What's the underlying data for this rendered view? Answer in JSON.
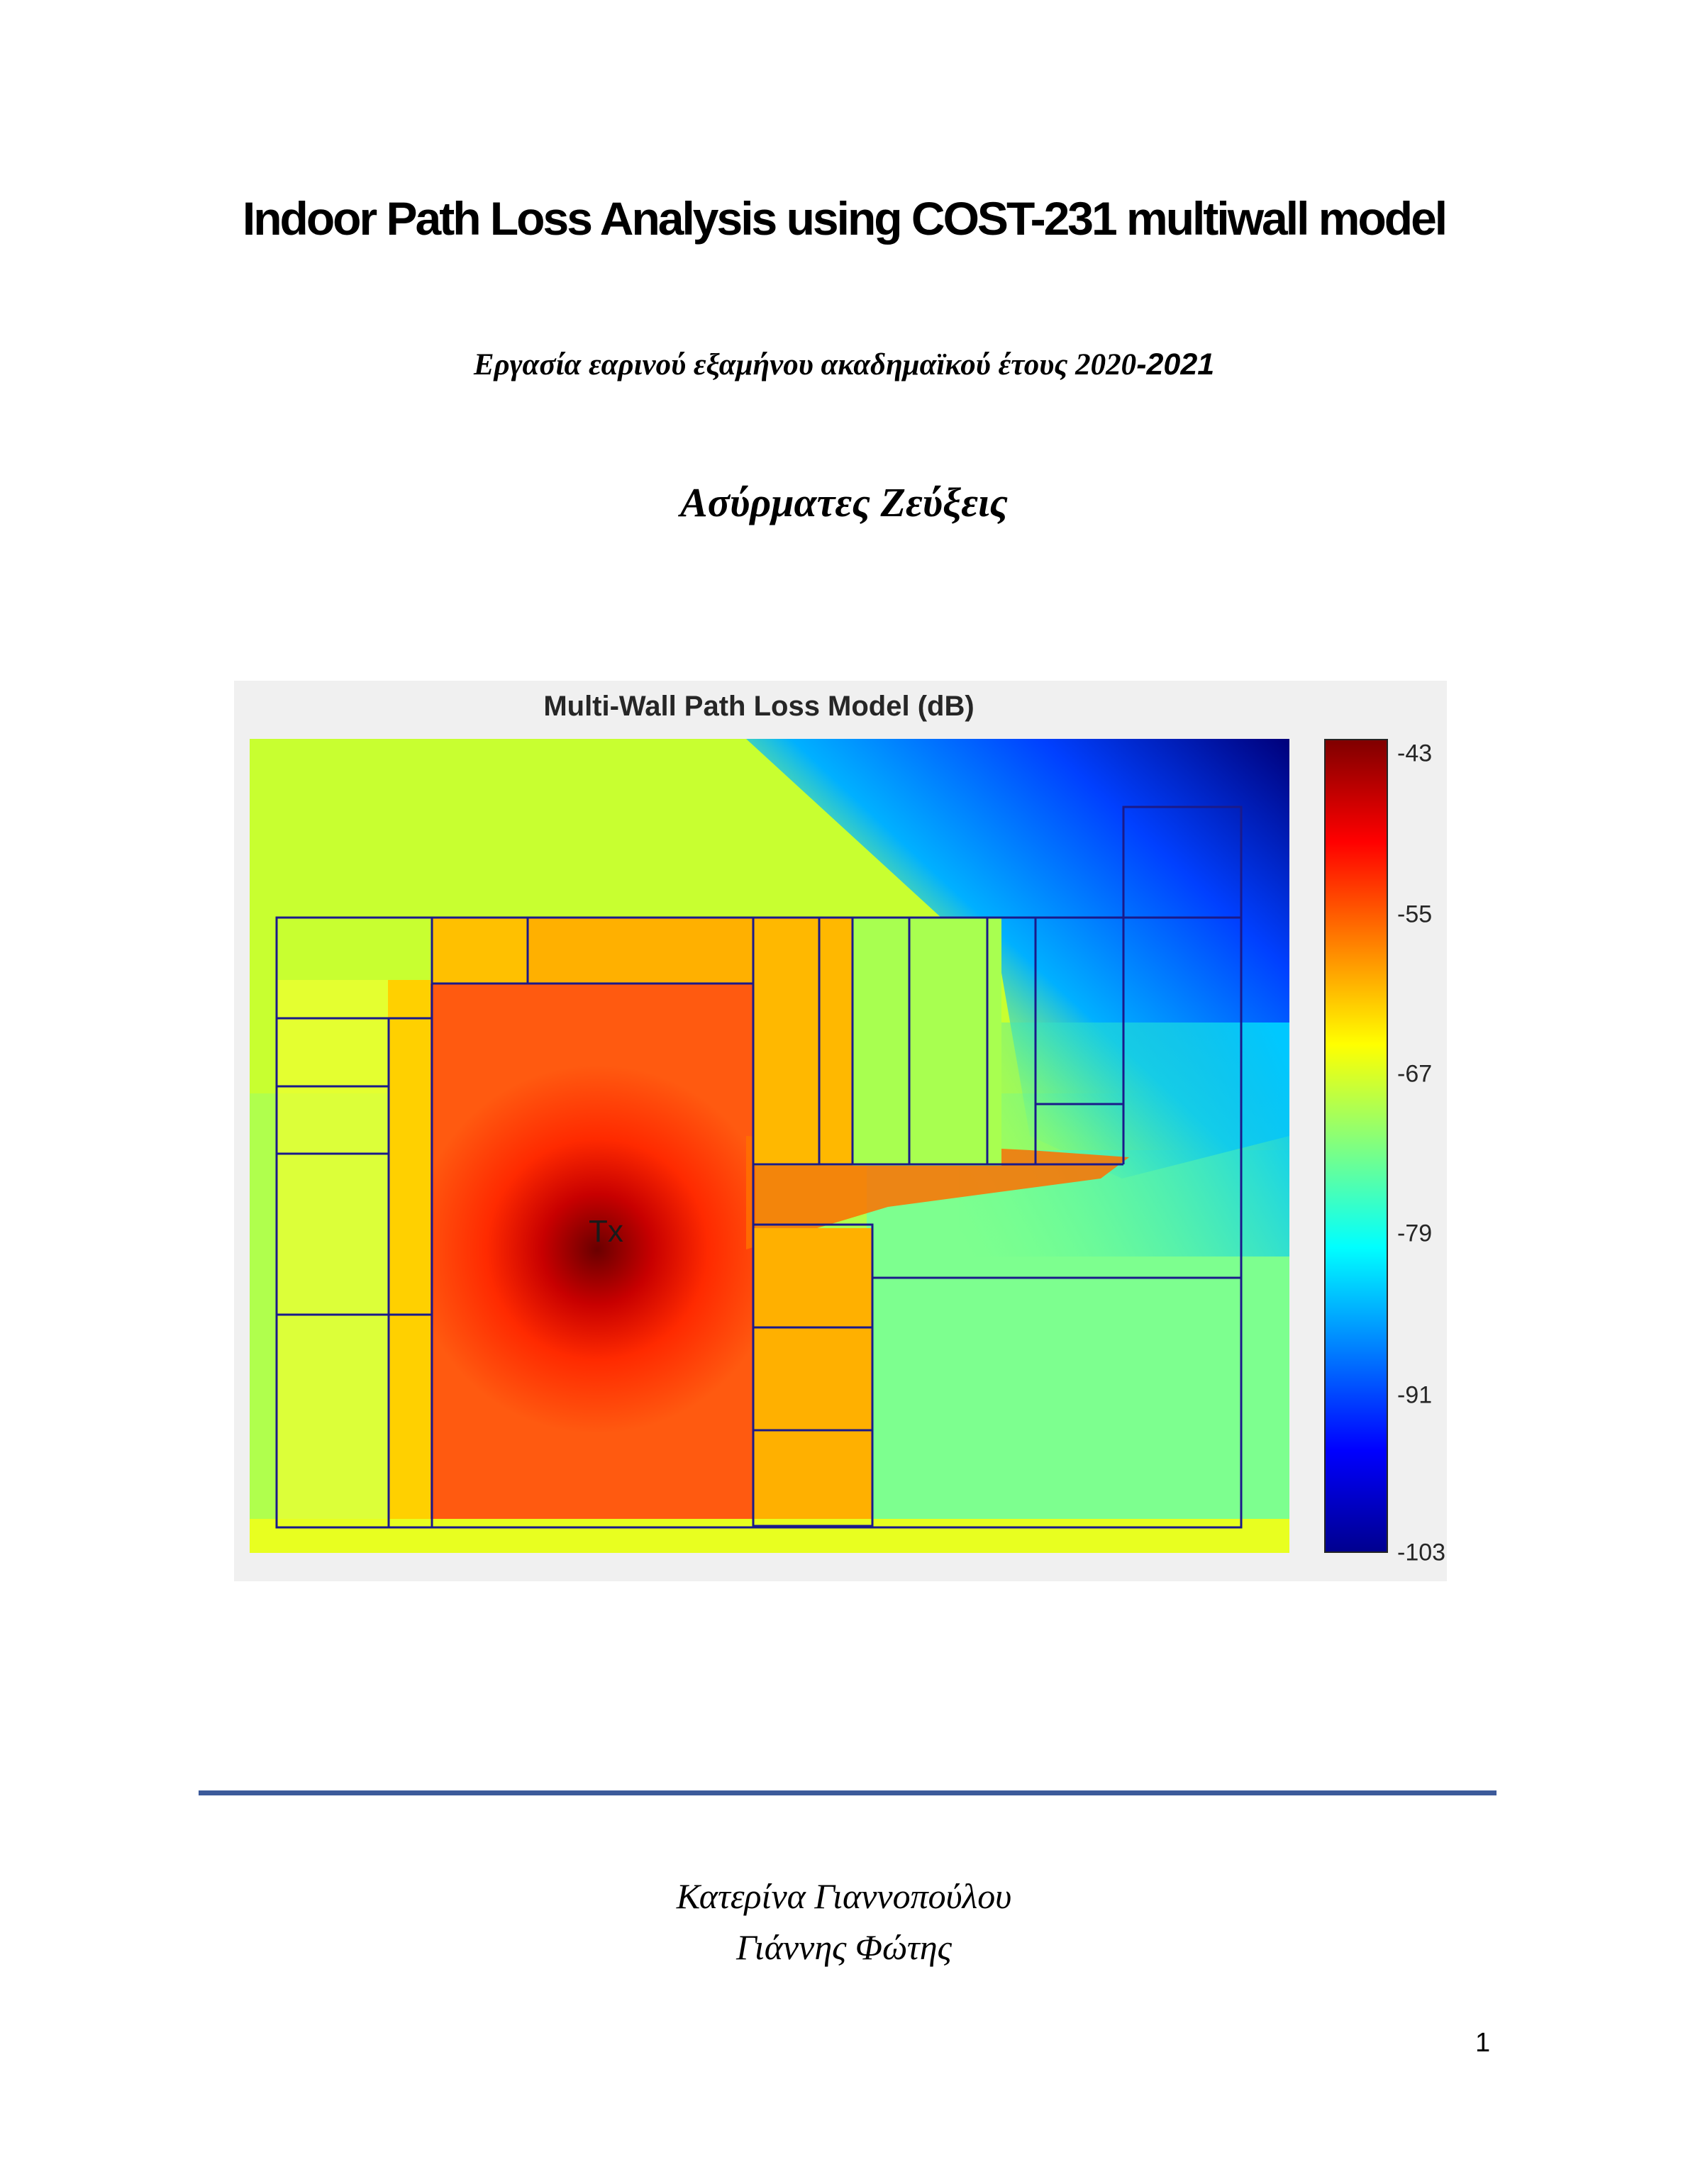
{
  "title": "Indoor Path Loss Analysis using COST-231 multiwall model",
  "subtitle_main": "Εργασία εαρινού εξαμήνου ακαδημαϊκού έτους 2020",
  "subtitle_year_end": "-2021",
  "course": "Ασύρματες Ζεύξεις",
  "figure": {
    "title": "Multi-Wall Path Loss Model (dB)",
    "tx_label": "Tx",
    "colorbar_ticks": [
      "-43",
      "-55",
      "-67",
      "-79",
      "-91",
      "-103"
    ],
    "colorbar_range": [
      -103,
      -43
    ],
    "colormap": "jet"
  },
  "authors": [
    "Κατερίνα Γιαννοπούλου",
    "Γιάννης Φώτης"
  ],
  "page_number": "1"
}
